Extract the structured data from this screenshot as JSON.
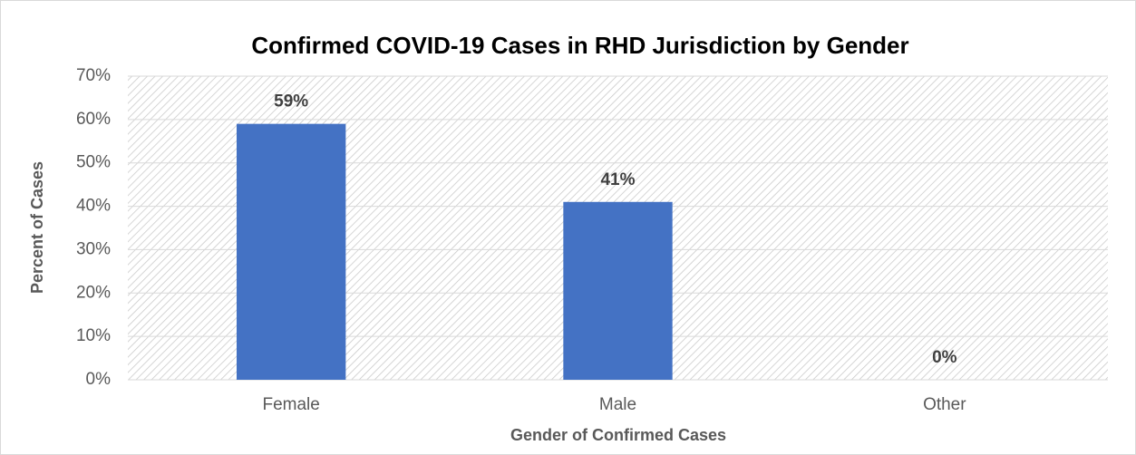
{
  "chart_data": {
    "type": "bar",
    "title": "Confirmed COVID-19 Cases in RHD Jurisdiction by Gender",
    "x_label": "Gender of Confirmed Cases",
    "y_label": "Percent of Cases",
    "categories": [
      "Female",
      "Male",
      "Other"
    ],
    "values": [
      59,
      41,
      0
    ],
    "value_labels": [
      "59%",
      "41%",
      "0%"
    ],
    "color": "#4472c4",
    "ylim": [
      0,
      70
    ],
    "yticks": [
      {
        "value": 0,
        "label": "0%"
      },
      {
        "value": 10,
        "label": "10%"
      },
      {
        "value": 20,
        "label": "20%"
      },
      {
        "value": 30,
        "label": "30%"
      },
      {
        "value": 40,
        "label": "40%"
      },
      {
        "value": 50,
        "label": "50%"
      },
      {
        "value": 60,
        "label": "60%"
      },
      {
        "value": 70,
        "label": "70%"
      }
    ],
    "grid": true
  }
}
